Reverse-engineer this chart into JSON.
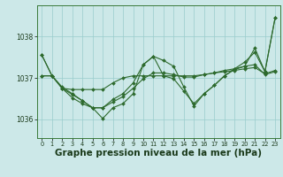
{
  "background_color": "#cce8e8",
  "grid_color": "#99cccc",
  "line_color": "#2d6a2d",
  "marker_color": "#2d6a2d",
  "xlabel": "Graphe pression niveau de la mer (hPa)",
  "xlabel_fontsize": 7.5,
  "ylim": [
    1035.55,
    1038.75
  ],
  "yticks": [
    1036,
    1037,
    1038
  ],
  "xlim": [
    -0.5,
    23.5
  ],
  "xticks": [
    0,
    1,
    2,
    3,
    4,
    5,
    6,
    7,
    8,
    9,
    10,
    11,
    12,
    13,
    14,
    15,
    16,
    17,
    18,
    19,
    20,
    21,
    22,
    23
  ],
  "series": [
    [
      1037.55,
      1037.05,
      1036.78,
      1036.62,
      1036.45,
      1036.28,
      1036.02,
      1036.28,
      1036.38,
      1036.62,
      1037.32,
      1037.52,
      1037.05,
      1036.98,
      1036.68,
      1036.38,
      1036.62,
      1036.82,
      1037.05,
      1037.22,
      1037.38,
      1037.62,
      1037.15,
      1038.45
    ],
    [
      1037.05,
      1037.05,
      1036.75,
      1036.72,
      1036.72,
      1036.72,
      1036.72,
      1036.88,
      1037.0,
      1037.05,
      1037.05,
      1037.05,
      1037.05,
      1037.05,
      1037.05,
      1037.05,
      1037.08,
      1037.12,
      1037.15,
      1037.18,
      1037.22,
      1037.25,
      1037.1,
      1037.18
    ],
    [
      1037.05,
      1037.05,
      1036.75,
      1036.52,
      1036.38,
      1036.28,
      1036.28,
      1036.42,
      1036.55,
      1036.75,
      1036.98,
      1037.12,
      1037.12,
      1037.08,
      1037.02,
      1037.02,
      1037.08,
      1037.12,
      1037.18,
      1037.22,
      1037.28,
      1037.32,
      1037.08,
      1037.15
    ],
    [
      1037.55,
      1037.05,
      1036.75,
      1036.6,
      1036.45,
      1036.28,
      1036.28,
      1036.48,
      1036.62,
      1036.88,
      1037.32,
      1037.52,
      1037.42,
      1037.28,
      1036.78,
      1036.32,
      1036.62,
      1036.82,
      1037.05,
      1037.2,
      1037.28,
      1037.72,
      1037.15,
      1038.45
    ]
  ]
}
